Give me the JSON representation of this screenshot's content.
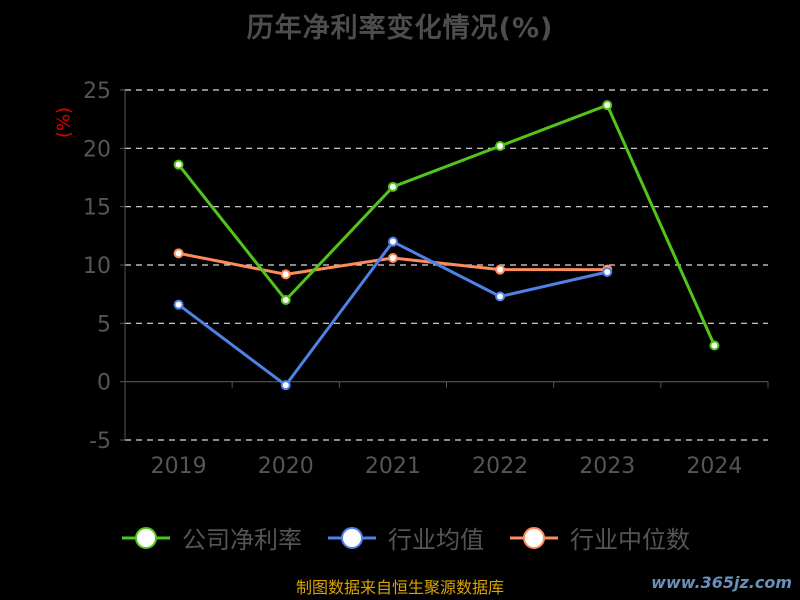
{
  "chart_data": {
    "type": "line",
    "title": "历年净利率变化情况(%)",
    "ylabel": "(%)",
    "x": [
      "2019",
      "2020",
      "2021",
      "2022",
      "2023",
      "2024"
    ],
    "ylim": [
      -5,
      25
    ],
    "yticks": [
      25,
      20,
      15,
      10,
      5,
      0,
      -5
    ],
    "grid": true,
    "legend_position": "bottom",
    "series": [
      {
        "name": "公司净利率",
        "color": "#52c41a",
        "values": [
          18.6,
          7.0,
          16.7,
          20.2,
          23.7,
          3.1
        ]
      },
      {
        "name": "行业均值",
        "color": "#4f81e6",
        "values": [
          6.6,
          -0.3,
          12.0,
          7.3,
          9.4,
          null
        ]
      },
      {
        "name": "行业中位数",
        "color": "#ff8c5a",
        "values": [
          11.0,
          9.2,
          10.6,
          9.6,
          9.6,
          null
        ]
      }
    ]
  },
  "footer": "制图数据来自恒生聚源数据库",
  "watermark": "www.365jz.com"
}
